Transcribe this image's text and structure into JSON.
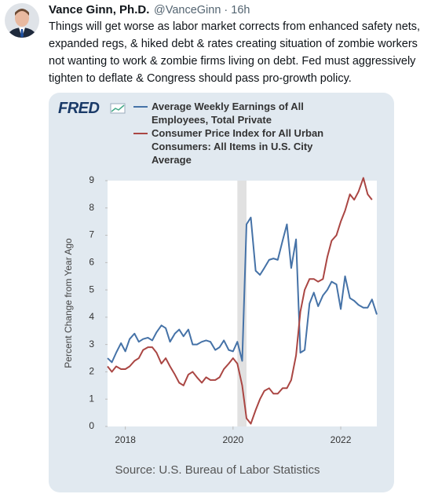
{
  "tweet": {
    "name": "Vance Ginn, Ph.D.",
    "meta": "@VanceGinn · 16h",
    "text_lines": [
      "Things will get worse as labor market corrects from enhanced safety nets,",
      "expanded regs, & hiked debt & rates creating situation of zombie workers",
      "not wanting to work & zombie firms living on debt. Fed must aggressively",
      "tighten to deflate & Congress should pass pro-growth policy."
    ]
  },
  "chart_data": {
    "type": "line",
    "logo": "FRED",
    "y_label": "Percent Change from Year Ago",
    "source": "Source: U.S. Bureau of Labor Statistics",
    "x": [
      2017.67,
      2017.75,
      2017.83,
      2017.92,
      2018,
      2018.08,
      2018.17,
      2018.25,
      2018.33,
      2018.42,
      2018.5,
      2018.58,
      2018.67,
      2018.75,
      2018.83,
      2018.92,
      2019,
      2019.08,
      2019.17,
      2019.25,
      2019.33,
      2019.42,
      2019.5,
      2019.58,
      2019.67,
      2019.75,
      2019.83,
      2019.92,
      2020,
      2020.08,
      2020.17,
      2020.25,
      2020.33,
      2020.42,
      2020.5,
      2020.58,
      2020.67,
      2020.75,
      2020.83,
      2020.92,
      2021,
      2021.08,
      2021.17,
      2021.25,
      2021.33,
      2021.42,
      2021.5,
      2021.58,
      2021.67,
      2021.75,
      2021.83,
      2021.92,
      2022,
      2022.08,
      2022.17,
      2022.25,
      2022.33,
      2022.42,
      2022.5,
      2022.58,
      2022.67
    ],
    "xlim": [
      2017.67,
      2022.67
    ],
    "xticks": [
      2018,
      2020,
      2022
    ],
    "ylim": [
      0,
      9
    ],
    "yticks": [
      0,
      1,
      2,
      3,
      4,
      5,
      6,
      7,
      8,
      9
    ],
    "recession_band": [
      2020.08,
      2020.25
    ],
    "series": [
      {
        "name": "Average Weekly Earnings of All Employees, Total Private",
        "color": "#4572a7",
        "values": [
          2.5,
          2.35,
          2.7,
          3.05,
          2.75,
          3.2,
          3.4,
          3.1,
          3.2,
          3.25,
          3.15,
          3.45,
          3.7,
          3.6,
          3.1,
          3.4,
          3.55,
          3.3,
          3.55,
          3.0,
          3.0,
          3.1,
          3.15,
          3.1,
          2.8,
          2.9,
          3.15,
          2.8,
          2.75,
          3.1,
          2.4,
          7.4,
          7.65,
          5.7,
          5.55,
          5.8,
          6.1,
          6.15,
          6.1,
          6.8,
          7.4,
          5.8,
          6.85,
          2.7,
          2.8,
          4.5,
          4.9,
          4.4,
          4.8,
          5.0,
          5.3,
          5.2,
          4.3,
          5.5,
          4.7,
          4.6,
          4.45,
          4.35,
          4.35,
          4.65,
          4.1
        ]
      },
      {
        "name": "Consumer Price Index for All Urban Consumers: All Items in U.S. City Average",
        "color": "#aa4643",
        "values": [
          2.2,
          2.0,
          2.2,
          2.1,
          2.1,
          2.2,
          2.4,
          2.5,
          2.8,
          2.9,
          2.9,
          2.7,
          2.3,
          2.5,
          2.2,
          1.9,
          1.6,
          1.5,
          1.9,
          2.0,
          1.8,
          1.6,
          1.8,
          1.7,
          1.7,
          1.8,
          2.1,
          2.3,
          2.5,
          2.3,
          1.5,
          0.3,
          0.1,
          0.6,
          1.0,
          1.3,
          1.4,
          1.2,
          1.2,
          1.4,
          1.4,
          1.7,
          2.6,
          4.2,
          5.0,
          5.4,
          5.4,
          5.3,
          5.4,
          6.2,
          6.8,
          7.0,
          7.5,
          7.9,
          8.5,
          8.3,
          8.6,
          9.1,
          8.5,
          8.3,
          null
        ]
      }
    ]
  }
}
